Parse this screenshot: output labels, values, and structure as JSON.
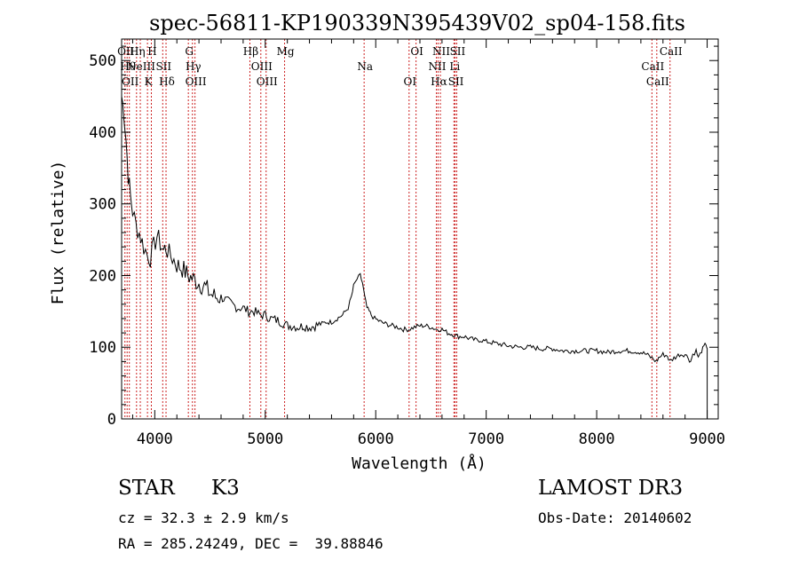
{
  "chart_data": {
    "type": "line",
    "title": "spec-56811-KP190339N395439V02_sp04-158.fits",
    "xlabel": "Wavelength (Å)",
    "ylabel": "Flux (relative)",
    "xlim": [
      3700,
      9100
    ],
    "ylim": [
      0,
      530
    ],
    "xticks": [
      4000,
      5000,
      6000,
      7000,
      8000,
      9000
    ],
    "yticks": [
      0,
      100,
      200,
      300,
      400,
      500
    ],
    "grid": false,
    "series": [
      {
        "x": [
          3700,
          3720,
          3740,
          3760,
          3780,
          3800,
          3830,
          3860,
          3900,
          3930,
          3960,
          3990,
          4020,
          4050,
          4080,
          4100,
          4130,
          4160,
          4200,
          4250,
          4300,
          4350,
          4400,
          4450,
          4500,
          4550,
          4600,
          4650,
          4700,
          4750,
          4800,
          4850,
          4900,
          4950,
          5000,
          5050,
          5100,
          5150,
          5200,
          5250,
          5300,
          5350,
          5400,
          5450,
          5500,
          5550,
          5600,
          5650,
          5700,
          5750,
          5780,
          5800,
          5830,
          5860,
          5880,
          5900,
          5920,
          5940,
          5960,
          5990,
          6050,
          6100,
          6150,
          6200,
          6250,
          6300,
          6350,
          6400,
          6450,
          6500,
          6550,
          6600,
          6650,
          6700,
          6750,
          6800,
          6850,
          6900,
          6950,
          7000,
          7100,
          7200,
          7300,
          7400,
          7500,
          7600,
          7700,
          7800,
          7900,
          8000,
          8100,
          8200,
          8300,
          8400,
          8450,
          8500,
          8540,
          8560,
          8600,
          8640,
          8660,
          8700,
          8750,
          8800,
          8830,
          8850,
          8870,
          8900,
          8920,
          8950,
          8970,
          8990,
          9000
        ],
        "y": [
          450,
          430,
          390,
          340,
          310,
          290,
          270,
          260,
          240,
          230,
          225,
          240,
          255,
          245,
          235,
          240,
          230,
          225,
          215,
          210,
          200,
          195,
          190,
          185,
          175,
          170,
          170,
          165,
          160,
          155,
          155,
          150,
          150,
          145,
          145,
          140,
          138,
          135,
          130,
          130,
          128,
          130,
          128,
          130,
          132,
          135,
          135,
          140,
          145,
          155,
          170,
          185,
          195,
          200,
          190,
          170,
          155,
          150,
          145,
          140,
          135,
          132,
          130,
          128,
          125,
          125,
          128,
          130,
          130,
          128,
          125,
          125,
          120,
          118,
          115,
          115,
          112,
          110,
          110,
          108,
          105,
          102,
          100,
          100,
          98,
          98,
          95,
          95,
          95,
          95,
          93,
          95,
          95,
          93,
          90,
          85,
          80,
          85,
          90,
          88,
          80,
          85,
          90,
          90,
          85,
          80,
          90,
          95,
          85,
          95,
          100,
          105,
          98
        ]
      }
    ],
    "lines": [
      {
        "x": 3730,
        "label": "OII"
      },
      {
        "x": 3750,
        "label": "Hθ"
      },
      {
        "x": 3770,
        "label": "OII"
      },
      {
        "x": 3835,
        "label": "Hη"
      },
      {
        "x": 3869,
        "label": "NeIII"
      },
      {
        "x": 3934,
        "label": "K"
      },
      {
        "x": 3969,
        "label": "H"
      },
      {
        "x": 4072,
        "label": "SII"
      },
      {
        "x": 4102,
        "label": "Hδ"
      },
      {
        "x": 4304,
        "label": "G"
      },
      {
        "x": 4341,
        "label": "Hγ"
      },
      {
        "x": 4364,
        "label": "OIII"
      },
      {
        "x": 4861,
        "label": "Hβ"
      },
      {
        "x": 4960,
        "label": "OIII"
      },
      {
        "x": 5008,
        "label": "OIII"
      },
      {
        "x": 5175,
        "label": "Mg"
      },
      {
        "x": 5895,
        "label": "Na"
      },
      {
        "x": 6302,
        "label": "OI"
      },
      {
        "x": 6365,
        "label": "OI"
      },
      {
        "x": 6549,
        "label": "NII"
      },
      {
        "x": 6564,
        "label": "Hα"
      },
      {
        "x": 6585,
        "label": "NII"
      },
      {
        "x": 6708,
        "label": "Li"
      },
      {
        "x": 6718,
        "label": "SII"
      },
      {
        "x": 6733,
        "label": "SII"
      },
      {
        "x": 8500,
        "label": "CaII"
      },
      {
        "x": 8544,
        "label": "CaII"
      },
      {
        "x": 8664,
        "label": "CaII"
      }
    ]
  },
  "footer": {
    "class_label": "STAR",
    "subclass": "K3",
    "survey": "LAMOST DR3",
    "redshift_text": "cz = 32.3 ± 2.9 km/s",
    "obs_date": "Obs-Date: 20140602",
    "coords_text": "RA = 285.24249, DEC =  39.88846"
  },
  "colors": {
    "line_markers": "#cc2222",
    "spectrum": "#000000"
  }
}
